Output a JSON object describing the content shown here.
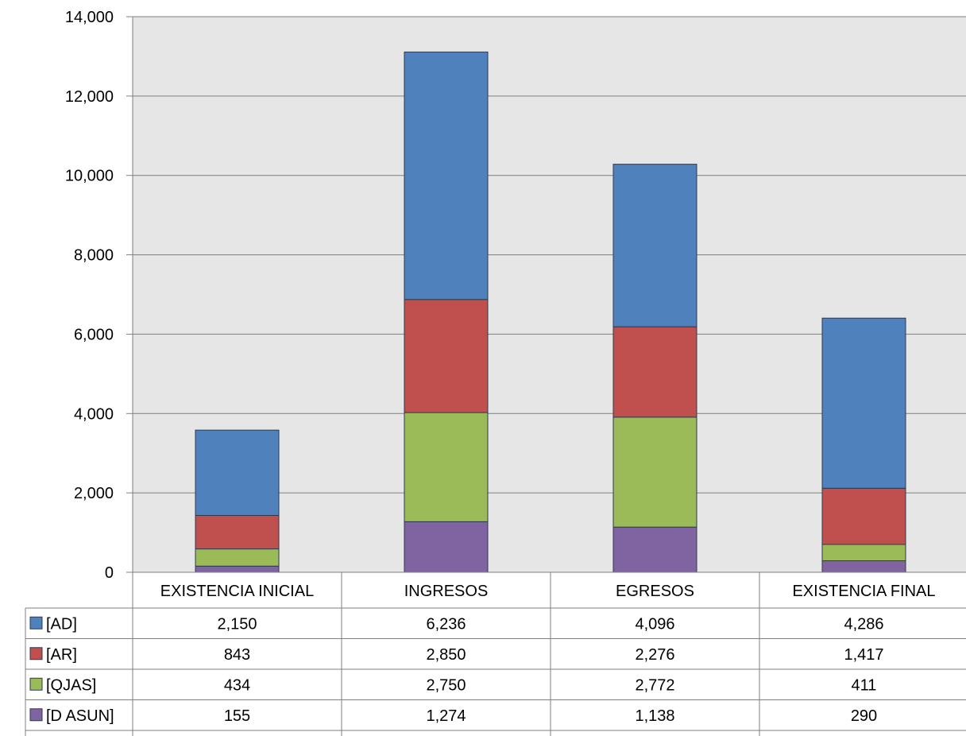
{
  "chart_data": {
    "type": "bar",
    "stacked": true,
    "title": "",
    "xlabel": "",
    "ylabel": "",
    "ylim": [
      0,
      14000
    ],
    "yticks": [
      "0",
      "2,000",
      "4,000",
      "6,000",
      "8,000",
      "10,000",
      "12,000",
      "14,000"
    ],
    "grid": true,
    "legend": "data-table-left",
    "categories": [
      "EXISTENCIA INICIAL",
      "INGRESOS",
      "EGRESOS",
      "EXISTENCIA FINAL"
    ],
    "series": [
      {
        "name": "[D ASUN]",
        "color": "#8064A2",
        "values": [
          155,
          1274,
          1138,
          290
        ],
        "labels": [
          "155",
          "1,274",
          "1,138",
          "290"
        ]
      },
      {
        "name": "[QJAS]",
        "color": "#9BBB59",
        "values": [
          434,
          2750,
          2772,
          411
        ],
        "labels": [
          "434",
          "2,750",
          "2,772",
          "411"
        ]
      },
      {
        "name": "[AR]",
        "color": "#C0504D",
        "values": [
          843,
          2850,
          2276,
          1417
        ],
        "labels": [
          "843",
          "2,850",
          "2,276",
          "1,417"
        ]
      },
      {
        "name": "[AD]",
        "color": "#4F81BD",
        "values": [
          2150,
          6236,
          4096,
          4286
        ],
        "labels": [
          "2,150",
          "6,236",
          "4,096",
          "4,286"
        ]
      }
    ],
    "table_order": [
      "[AD]",
      "[AR]",
      "[QJAS]",
      "[D ASUN]"
    ],
    "plot_background": "#E6E6E6"
  }
}
